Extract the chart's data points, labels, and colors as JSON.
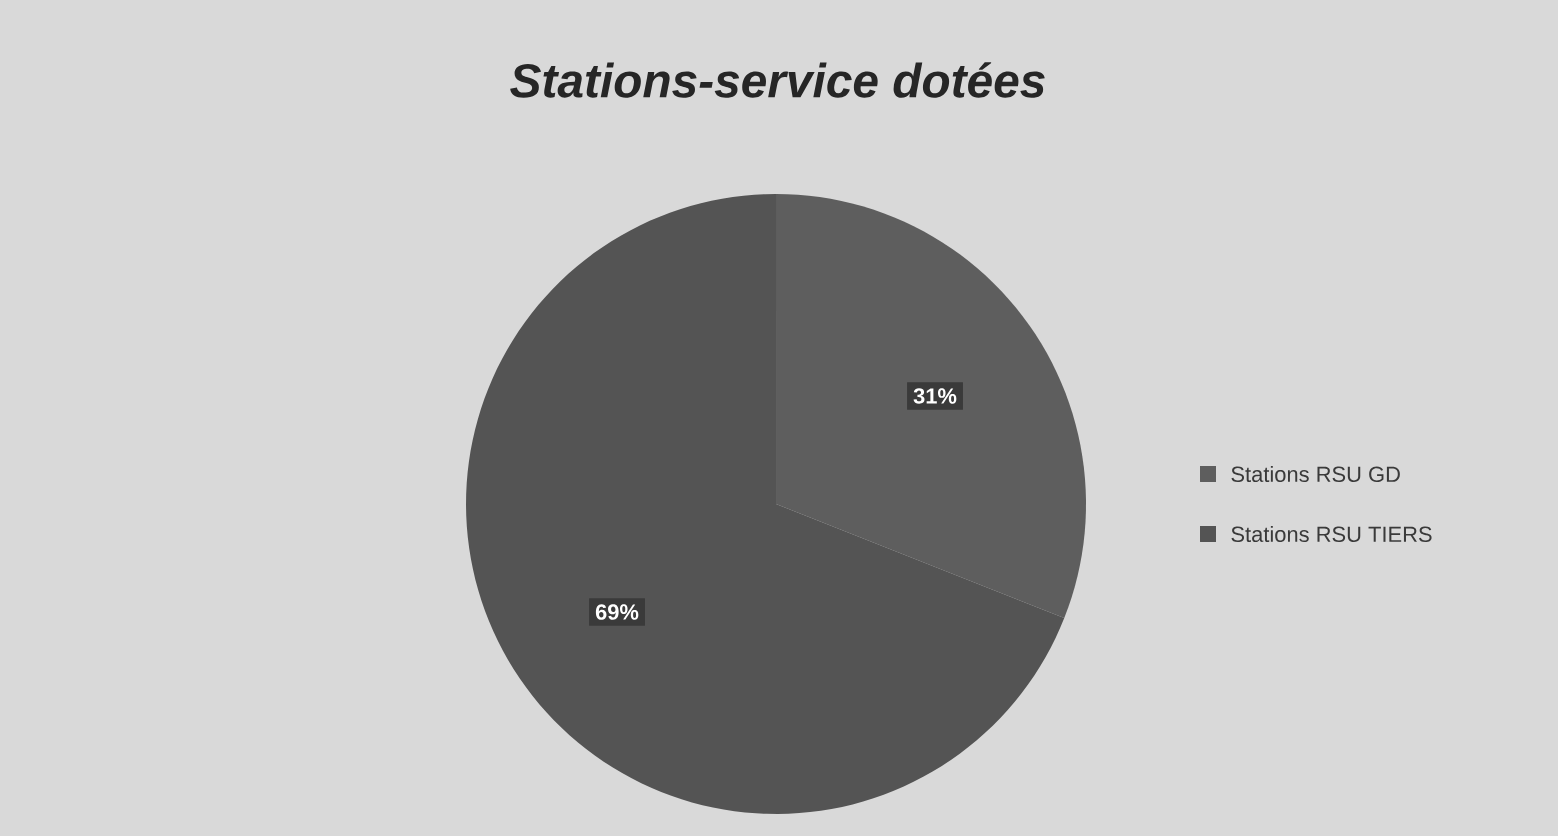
{
  "chart_data": {
    "type": "pie",
    "title": "Stations-service dotées",
    "categories": [
      "Stations RSU GD",
      "Stations RSU TIERS"
    ],
    "values": [
      31,
      69
    ],
    "value_labels": [
      "31%",
      "69%"
    ],
    "colors": [
      "#5e5e5e",
      "#545454"
    ],
    "legend": "right"
  }
}
